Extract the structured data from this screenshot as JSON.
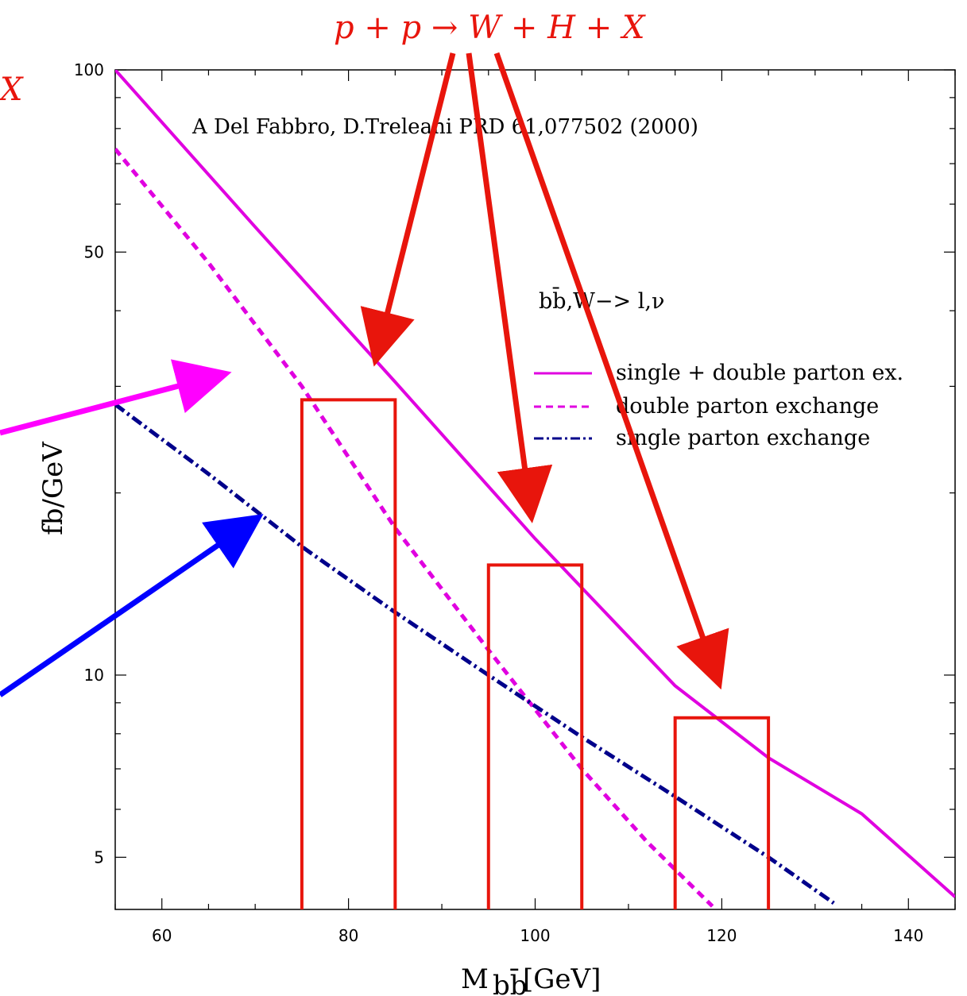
{
  "chart_data": {
    "type": "line",
    "title": "A Del Fabbro, D.Treleani PRD 61,077502 (2000)",
    "xlabel": "M",
    "xlabel_sub": "bb̄",
    "xlabel_unit": "[GeV]",
    "ylabel": "fb/GeV",
    "x_scale": "linear",
    "y_scale": "log",
    "xlim": [
      55,
      145
    ],
    "ylim": [
      4.1,
      100
    ],
    "x_ticks": [
      60,
      80,
      100,
      120,
      140
    ],
    "x_tick_labels": [
      "60",
      "80",
      "100",
      "120",
      "140"
    ],
    "y_ticks": [
      5,
      10,
      50,
      100
    ],
    "y_tick_labels": [
      "5",
      "10",
      "50",
      "100"
    ],
    "process_label": "p + p → W + H + X",
    "left_process_label": "X",
    "channel_label": "bb̄,W−> l,ν",
    "series": [
      {
        "name": "single + double parton ex.",
        "style": "solid",
        "color": "#e000e0",
        "x": [
          55,
          70,
          85,
          100,
          115,
          125,
          135,
          145
        ],
        "y": [
          100,
          55,
          30.5,
          16.8,
          9.6,
          7.3,
          5.9,
          4.3
        ]
      },
      {
        "name": "double parton exchange",
        "style": "dashed",
        "color": "#e000e0",
        "x": [
          55,
          65,
          75,
          85,
          95,
          105,
          112,
          119
        ],
        "y": [
          74,
          48,
          30,
          17.5,
          11,
          7.0,
          5.3,
          4.15
        ]
      },
      {
        "name": "single parton exchange",
        "style": "dashdot",
        "color": "#00008b",
        "x": [
          55,
          65,
          75,
          85,
          95,
          105,
          115,
          125,
          132
        ],
        "y": [
          28,
          21.5,
          16.3,
          12.7,
          10.0,
          7.9,
          6.3,
          5.0,
          4.2
        ]
      }
    ],
    "signal_bars": [
      {
        "x_from": 75,
        "x_to": 85,
        "y": 28.5
      },
      {
        "x_from": 95,
        "x_to": 105,
        "y": 15.2
      },
      {
        "x_from": 115,
        "x_to": 125,
        "y": 8.5
      }
    ],
    "colors": {
      "red": "#e8150c",
      "magenta": "#e000e0",
      "navy": "#00008b",
      "blue": "#0000ff"
    }
  }
}
